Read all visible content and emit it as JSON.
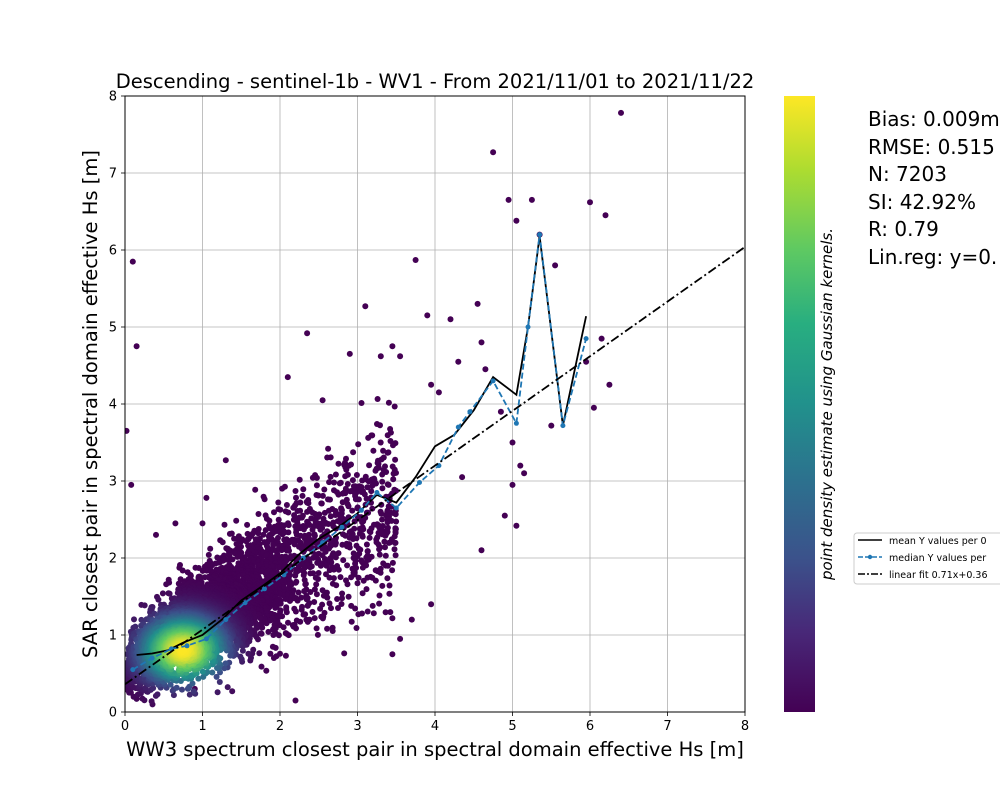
{
  "chart_data": {
    "type": "scatter",
    "title": "Descending - sentinel-1b - WV1 - From 2021/11/01 to 2021/11/22",
    "xlabel": "WW3 spectrum closest pair in spectral domain effective Hs [m]",
    "ylabel": "SAR closest pair in spectral domain effective Hs [m]",
    "xlim": [
      0,
      8
    ],
    "ylim": [
      0,
      8
    ],
    "xticks": [
      "0",
      "1",
      "2",
      "3",
      "4",
      "5",
      "6",
      "7",
      "8"
    ],
    "yticks": [
      "0",
      "1",
      "2",
      "3",
      "4",
      "5",
      "6",
      "7",
      "8"
    ],
    "grid": true,
    "colorbar_label": "point density estimate using Gaussian kernels.",
    "colormap": [
      "#440154",
      "#3b528b",
      "#21918c",
      "#5ec962",
      "#fde725"
    ],
    "stats": [
      "Bias: 0.009m",
      "RMSE: 0.515",
      "N: 7203",
      "SI: 42.92%",
      "R: 0.79",
      "Lin.reg: y=0."
    ],
    "legend": {
      "placement": "right, outside axes",
      "entries": [
        "mean Y values per 0",
        "median Y values per",
        "linear fit 0.71x+0.36"
      ]
    },
    "mean_line": {
      "x": [
        0.15,
        0.35,
        0.55,
        0.75,
        1.0,
        1.25,
        1.5,
        1.75,
        2.0,
        2.25,
        2.5,
        2.75,
        3.0,
        3.25,
        3.5,
        3.75,
        4.0,
        4.25,
        4.5,
        4.75,
        5.05,
        5.2,
        5.35,
        5.65,
        5.95
      ],
      "y": [
        0.74,
        0.76,
        0.8,
        0.9,
        1.0,
        1.2,
        1.45,
        1.62,
        1.8,
        2.05,
        2.25,
        2.4,
        2.58,
        2.82,
        2.72,
        3.05,
        3.45,
        3.6,
        3.92,
        4.35,
        4.12,
        5.0,
        6.18,
        3.72,
        5.14
      ]
    },
    "median_line": {
      "x": [
        0.1,
        0.35,
        0.6,
        0.8,
        1.05,
        1.3,
        1.55,
        1.8,
        2.05,
        2.3,
        2.55,
        2.8,
        3.05,
        3.25,
        3.5,
        3.8,
        4.05,
        4.3,
        4.45,
        4.75,
        5.05,
        5.2,
        5.35,
        5.65,
        5.95
      ],
      "y": [
        0.55,
        0.7,
        0.82,
        0.86,
        0.95,
        1.2,
        1.42,
        1.6,
        1.78,
        2.0,
        2.2,
        2.4,
        2.62,
        2.85,
        2.65,
        2.98,
        3.2,
        3.7,
        3.9,
        4.3,
        3.75,
        5.0,
        6.2,
        3.72,
        4.85
      ]
    },
    "linear_fit": {
      "slope": 0.71,
      "intercept": 0.36
    },
    "outliers": {
      "x": [
        0.1,
        0.15,
        0.02,
        0.08,
        6.4,
        4.75,
        4.95,
        5.05,
        5.25,
        6.0,
        6.2,
        5.35,
        5.55,
        6.15,
        6.25,
        5.95,
        6.05,
        5.5,
        3.75,
        3.1,
        2.35,
        1.3,
        1.05,
        2.1,
        3.9,
        4.2,
        4.6,
        4.55,
        4.3,
        3.55,
        3.45,
        2.9,
        2.55,
        3.3,
        3.95,
        4.05,
        4.65,
        4.85,
        5.0,
        5.1,
        5.0,
        4.6,
        4.9,
        2.95,
        1.35,
        3.55,
        3.45,
        3.95,
        2.2,
        0.65,
        1.0,
        0.4,
        5.15,
        4.35,
        2.6,
        3.7,
        5.05,
        0.9
      ],
      "y": [
        5.85,
        4.75,
        3.65,
        2.95,
        7.78,
        7.27,
        6.65,
        6.38,
        6.65,
        6.62,
        6.45,
        6.2,
        5.8,
        4.85,
        4.25,
        4.55,
        3.95,
        3.72,
        5.87,
        5.27,
        4.92,
        3.27,
        2.78,
        4.35,
        5.15,
        5.1,
        4.8,
        5.3,
        4.55,
        4.62,
        4.75,
        4.65,
        4.05,
        4.62,
        4.25,
        4.15,
        4.45,
        3.9,
        3.5,
        3.2,
        2.95,
        2.1,
        2.55,
        2.0,
        2.1,
        0.95,
        0.75,
        1.4,
        0.15,
        2.45,
        2.45,
        2.3,
        3.1,
        3.05,
        1.5,
        1.2,
        2.42,
        0.3
      ]
    }
  }
}
